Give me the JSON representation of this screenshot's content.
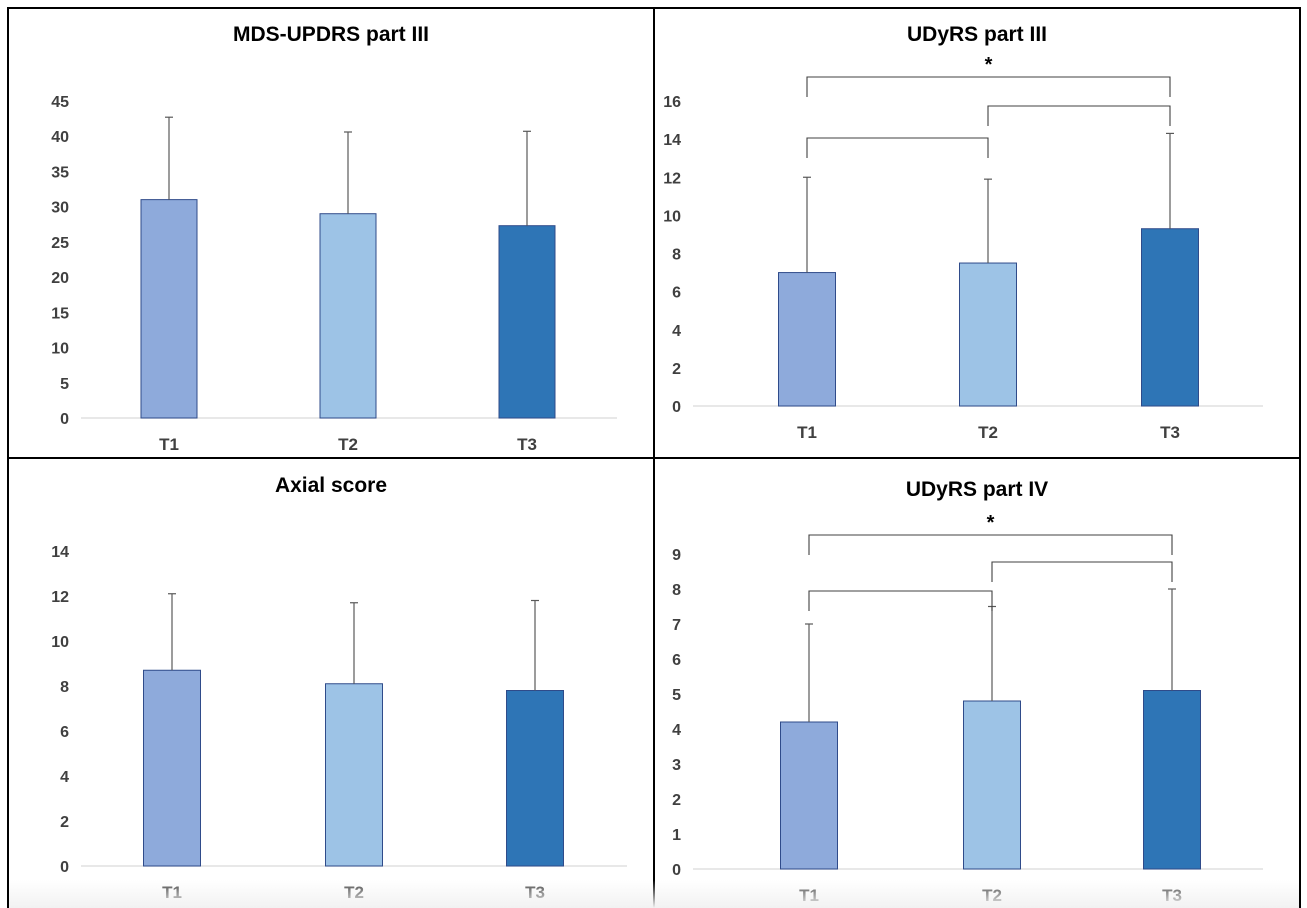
{
  "chart_data": [
    {
      "type": "bar",
      "title": "MDS-UPDRS part III",
      "categories": [
        "T1",
        "T2",
        "T3"
      ],
      "values": [
        31.0,
        29.0,
        27.3
      ],
      "error_upper": [
        11.7,
        11.6,
        13.4
      ],
      "ylim": [
        0,
        45
      ],
      "yticks": [
        0,
        5,
        10,
        15,
        20,
        25,
        30,
        35,
        40,
        45
      ],
      "xlabel": "",
      "ylabel": "",
      "bar_colors": [
        "#8eaadb",
        "#9dc3e6",
        "#2e75b6"
      ],
      "significance": []
    },
    {
      "type": "bar",
      "title": "UDyRS part III",
      "categories": [
        "T1",
        "T2",
        "T3"
      ],
      "values": [
        7.0,
        7.5,
        9.3
      ],
      "error_upper": [
        5.0,
        4.4,
        5.0
      ],
      "ylim": [
        0,
        16
      ],
      "yticks": [
        0,
        2,
        4,
        6,
        8,
        10,
        12,
        14,
        16
      ],
      "xlabel": "",
      "ylabel": "",
      "bar_colors": [
        "#8eaadb",
        "#9dc3e6",
        "#2e75b6"
      ],
      "significance": [
        {
          "from": "T1",
          "to": "T3",
          "label": "*"
        },
        {
          "from": "T2",
          "to": "T3",
          "label": ""
        },
        {
          "from": "T1",
          "to": "T2",
          "label": ""
        }
      ]
    },
    {
      "type": "bar",
      "title": "Axial score",
      "categories": [
        "T1",
        "T2",
        "T3"
      ],
      "values": [
        8.7,
        8.1,
        7.8
      ],
      "error_upper": [
        3.4,
        3.6,
        4.0
      ],
      "ylim": [
        0,
        14
      ],
      "yticks": [
        0,
        2,
        4,
        6,
        8,
        10,
        12,
        14
      ],
      "xlabel": "",
      "ylabel": "",
      "bar_colors": [
        "#8eaadb",
        "#9dc3e6",
        "#2e75b6"
      ],
      "significance": []
    },
    {
      "type": "bar",
      "title": "UDyRS part IV",
      "categories": [
        "T1",
        "T2",
        "T3"
      ],
      "values": [
        4.2,
        4.8,
        5.1
      ],
      "error_upper": [
        2.8,
        2.7,
        2.9
      ],
      "ylim": [
        0,
        9
      ],
      "yticks": [
        0,
        1,
        2,
        3,
        4,
        5,
        6,
        7,
        8,
        9
      ],
      "xlabel": "",
      "ylabel": "",
      "bar_colors": [
        "#8eaadb",
        "#9dc3e6",
        "#2e75b6"
      ],
      "significance": [
        {
          "from": "T1",
          "to": "T3",
          "label": "*"
        },
        {
          "from": "T2",
          "to": "T3",
          "label": ""
        },
        {
          "from": "T1",
          "to": "T2",
          "label": ""
        }
      ]
    }
  ]
}
